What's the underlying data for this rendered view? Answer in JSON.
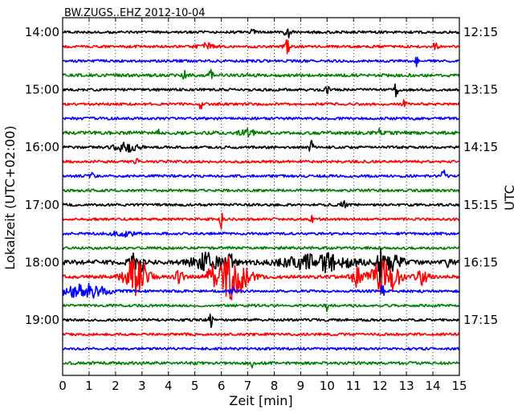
{
  "chart_data": {
    "type": "line",
    "title": "BW.ZUGS..EHZ 2012-10-04",
    "xlabel": "Zeit  [min]",
    "ylabel_left": "Lokalzeit (UTC+02:00)",
    "ylabel_right": "UTC",
    "xlim": [
      0,
      15
    ],
    "x_ticks": [
      0,
      1,
      2,
      3,
      4,
      5,
      6,
      7,
      8,
      9,
      10,
      11,
      12,
      13,
      14,
      15
    ],
    "x_tick_labels": [
      "0",
      "1",
      "2",
      "3",
      "4",
      "5",
      "6",
      "7",
      "8",
      "9",
      "10",
      "11",
      "12",
      "13",
      "14",
      "15"
    ],
    "trace_minutes": 15,
    "grid": "vertical-dotted",
    "trace_colors": [
      "#000000",
      "#ff0000",
      "#0000ff",
      "#008000"
    ],
    "left_ticks": [
      {
        "trace": 0,
        "label": "14:00"
      },
      {
        "trace": 4,
        "label": "15:00"
      },
      {
        "trace": 8,
        "label": "16:00"
      },
      {
        "trace": 12,
        "label": "17:00"
      },
      {
        "trace": 16,
        "label": "18:00"
      },
      {
        "trace": 20,
        "label": "19:00"
      }
    ],
    "right_ticks": [
      {
        "trace": 0,
        "label": "12:15"
      },
      {
        "trace": 4,
        "label": "13:15"
      },
      {
        "trace": 8,
        "label": "14:15"
      },
      {
        "trace": 12,
        "label": "15:15"
      },
      {
        "trace": 16,
        "label": "16:15"
      },
      {
        "trace": 20,
        "label": "17:15"
      }
    ],
    "traces": [
      {
        "start": "14:00",
        "noise": 1.0,
        "events": [
          {
            "t": 8.5,
            "amp": 6,
            "w": 0.08
          },
          {
            "t": 7.2,
            "amp": 3,
            "w": 0.05
          }
        ]
      },
      {
        "start": "14:15",
        "noise": 1.0,
        "events": [
          {
            "t": 8.5,
            "amp": 5,
            "w": 0.08
          },
          {
            "t": 14.1,
            "amp": 4,
            "w": 0.05
          },
          {
            "t": 5.4,
            "amp": 2.5,
            "w": 0.2
          }
        ]
      },
      {
        "start": "14:30",
        "noise": 1.0,
        "events": [
          {
            "t": 13.4,
            "amp": 4,
            "w": 0.05
          }
        ]
      },
      {
        "start": "14:45",
        "noise": 1.2,
        "events": [
          {
            "t": 4.6,
            "amp": 3,
            "w": 0.05
          },
          {
            "t": 5.6,
            "amp": 4,
            "w": 0.05
          }
        ]
      },
      {
        "start": "15:00",
        "noise": 1.0,
        "events": [
          {
            "t": 12.6,
            "amp": 5,
            "w": 0.05
          },
          {
            "t": 10.0,
            "amp": 2.5,
            "w": 0.05
          }
        ]
      },
      {
        "start": "15:15",
        "noise": 1.0,
        "events": [
          {
            "t": 5.2,
            "amp": 5,
            "w": 0.05
          },
          {
            "t": 12.9,
            "amp": 3,
            "w": 0.05
          }
        ]
      },
      {
        "start": "15:30",
        "noise": 1.0,
        "events": []
      },
      {
        "start": "15:45",
        "noise": 1.3,
        "events": [
          {
            "t": 3.6,
            "amp": 3,
            "w": 0.05
          },
          {
            "t": 7.0,
            "amp": 2.5,
            "w": 0.2
          },
          {
            "t": 12.0,
            "amp": 3,
            "w": 0.05
          }
        ]
      },
      {
        "start": "16:00",
        "noise": 1.0,
        "events": [
          {
            "t": 2.4,
            "amp": 3.5,
            "w": 0.3
          },
          {
            "t": 9.4,
            "amp": 7,
            "w": 0.05
          }
        ]
      },
      {
        "start": "16:15",
        "noise": 1.0,
        "events": [
          {
            "t": 2.8,
            "amp": 3,
            "w": 0.05
          }
        ]
      },
      {
        "start": "16:30",
        "noise": 1.0,
        "events": [
          {
            "t": 14.4,
            "amp": 5,
            "w": 0.05
          },
          {
            "t": 1.1,
            "amp": 2.5,
            "w": 0.05
          }
        ]
      },
      {
        "start": "16:45",
        "noise": 1.0,
        "events": []
      },
      {
        "start": "17:00",
        "noise": 1.0,
        "events": [
          {
            "t": 10.6,
            "amp": 3,
            "w": 0.1
          }
        ]
      },
      {
        "start": "17:15",
        "noise": 1.0,
        "events": [
          {
            "t": 6.0,
            "amp": 8,
            "w": 0.04
          },
          {
            "t": 9.4,
            "amp": 3,
            "w": 0.05
          }
        ]
      },
      {
        "start": "17:30",
        "noise": 1.0,
        "events": [
          {
            "t": 2.3,
            "amp": 2,
            "w": 0.3
          }
        ]
      },
      {
        "start": "17:45",
        "noise": 1.0,
        "events": []
      },
      {
        "start": "18:00",
        "noise": 1.8,
        "events": [
          {
            "t": 2.7,
            "amp": 6,
            "w": 0.15
          },
          {
            "t": 3.0,
            "amp": 5,
            "w": 0.05
          },
          {
            "t": 5.4,
            "amp": 7,
            "w": 0.35
          },
          {
            "t": 6.3,
            "amp": 6,
            "w": 0.15
          },
          {
            "t": 9.7,
            "amp": 7,
            "w": 0.8
          },
          {
            "t": 12.0,
            "amp": 18,
            "w": 0.05
          },
          {
            "t": 12.4,
            "amp": 6,
            "w": 0.3
          },
          {
            "t": 14.6,
            "amp": 4,
            "w": 0.05
          }
        ]
      },
      {
        "start": "18:15",
        "noise": 1.3,
        "events": [
          {
            "t": 2.8,
            "amp": 16,
            "w": 0.3
          },
          {
            "t": 4.4,
            "amp": 5,
            "w": 0.15
          },
          {
            "t": 6.4,
            "amp": 18,
            "w": 0.4
          },
          {
            "t": 5.8,
            "amp": 7,
            "w": 0.25
          },
          {
            "t": 11.1,
            "amp": 8,
            "w": 0.15
          },
          {
            "t": 12.2,
            "amp": 15,
            "w": 0.35
          },
          {
            "t": 13.6,
            "amp": 6,
            "w": 0.15
          }
        ]
      },
      {
        "start": "18:30",
        "noise": 1.0,
        "events": [
          {
            "t": 0.8,
            "amp": 6,
            "w": 0.6
          },
          {
            "t": 6.4,
            "amp": 5,
            "w": 0.05
          },
          {
            "t": 12.1,
            "amp": 5,
            "w": 0.05
          }
        ]
      },
      {
        "start": "18:45",
        "noise": 1.0,
        "events": [
          {
            "t": 10.0,
            "amp": 4,
            "w": 0.05
          }
        ]
      },
      {
        "start": "19:00",
        "noise": 1.0,
        "events": [
          {
            "t": 5.6,
            "amp": 9,
            "w": 0.04
          }
        ]
      },
      {
        "start": "19:15",
        "noise": 1.0,
        "events": []
      },
      {
        "start": "19:30",
        "noise": 1.0,
        "events": []
      },
      {
        "start": "19:45",
        "noise": 1.1,
        "events": [
          {
            "t": 7.2,
            "amp": 5,
            "w": 0.05
          }
        ]
      }
    ]
  }
}
